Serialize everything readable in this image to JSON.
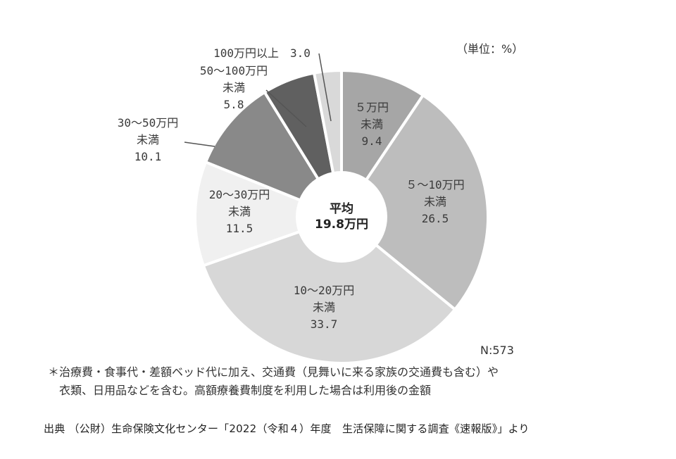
{
  "unit_label": "（単位：%）",
  "n_label": "N:573",
  "center": {
    "line1": "平均",
    "line2": "19.8万円"
  },
  "note": {
    "line1": "＊治療費・食事代・差額ベッド代に加え、交通費（見舞いに来る家族の交通費も含む）や",
    "line2": "衣類、日用品などを含む。高額療養費制度を利用した場合は利用後の金額"
  },
  "source": "出典 （公財）生命保険文化センター「2022（令和４）年度　生活保障に関する調査《速報版》」より",
  "chart_data": {
    "type": "pie",
    "title": "",
    "categories": [
      "5万円未満",
      "5～10万円未満",
      "10～20万円未満",
      "20～30万円未満",
      "30～50万円未満",
      "50～100万円未満",
      "100万円以上"
    ],
    "values": [
      9.4,
      26.5,
      33.7,
      11.5,
      10.1,
      5.8,
      3.0
    ],
    "colors": [
      "#a6a6a6",
      "#bdbdbd",
      "#d7d7d7",
      "#f0f0f0",
      "#898989",
      "#606060",
      "#d9d9d9"
    ],
    "labels": [
      {
        "lines": [
          "５万円",
          "未満",
          "9.4"
        ]
      },
      {
        "lines": [
          "５～10万円",
          "未満",
          "26.5"
        ]
      },
      {
        "lines": [
          "10～20万円",
          "未満",
          "33.7"
        ]
      },
      {
        "lines": [
          "20～30万円",
          "未満",
          "11.5"
        ]
      },
      {
        "lines": [
          "30～50万円",
          "未満",
          "10.1"
        ]
      },
      {
        "lines": [
          "50～100万円",
          "未満",
          "5.8"
        ]
      },
      {
        "lines": [
          "100万円以上　3.0"
        ]
      }
    ]
  }
}
